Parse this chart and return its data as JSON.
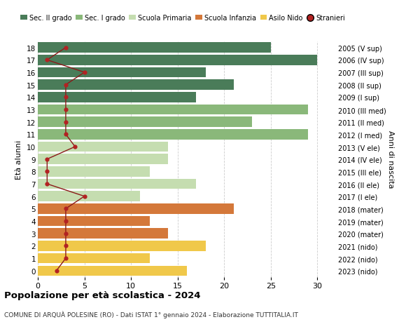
{
  "ages": [
    18,
    17,
    16,
    15,
    14,
    13,
    12,
    11,
    10,
    9,
    8,
    7,
    6,
    5,
    4,
    3,
    2,
    1,
    0
  ],
  "labels_right": [
    "2005 (V sup)",
    "2006 (IV sup)",
    "2007 (III sup)",
    "2008 (II sup)",
    "2009 (I sup)",
    "2010 (III med)",
    "2011 (II med)",
    "2012 (I med)",
    "2013 (V ele)",
    "2014 (IV ele)",
    "2015 (III ele)",
    "2016 (II ele)",
    "2017 (I ele)",
    "2018 (mater)",
    "2019 (mater)",
    "2020 (mater)",
    "2021 (nido)",
    "2022 (nido)",
    "2023 (nido)"
  ],
  "bar_values": [
    25,
    30,
    18,
    21,
    17,
    29,
    23,
    29,
    14,
    14,
    12,
    17,
    11,
    21,
    12,
    14,
    18,
    12,
    16
  ],
  "stranieri": [
    3,
    1,
    5,
    3,
    3,
    3,
    3,
    3,
    4,
    1,
    1,
    1,
    5,
    3,
    3,
    3,
    3,
    3,
    2
  ],
  "bar_colors": [
    "#4a7c59",
    "#4a7c59",
    "#4a7c59",
    "#4a7c59",
    "#4a7c59",
    "#8ab87a",
    "#8ab87a",
    "#8ab87a",
    "#c5ddb0",
    "#c5ddb0",
    "#c5ddb0",
    "#c5ddb0",
    "#c5ddb0",
    "#d4783a",
    "#d4783a",
    "#d4783a",
    "#f0c84a",
    "#f0c84a",
    "#f0c84a"
  ],
  "legend_labels": [
    "Sec. II grado",
    "Sec. I grado",
    "Scuola Primaria",
    "Scuola Infanzia",
    "Asilo Nido",
    "Stranieri"
  ],
  "legend_colors": [
    "#4a7c59",
    "#8ab87a",
    "#c5ddb0",
    "#d4783a",
    "#f0c84a",
    "#b22222"
  ],
  "title": "Popolazione per età scolastica - 2024",
  "subtitle": "COMUNE DI ARQUÀ POLESINE (RO) - Dati ISTAT 1° gennaio 2024 - Elaborazione TUTTITALIA.IT",
  "ylabel_left": "Età alunni",
  "ylabel_right": "Anni di nascita",
  "xlim": [
    0,
    32
  ],
  "xticks": [
    0,
    5,
    10,
    15,
    20,
    25,
    30
  ],
  "stranieri_color": "#b22222",
  "stranieri_line_color": "#8b1a1a",
  "grid_color": "#cccccc",
  "bar_height": 0.82
}
